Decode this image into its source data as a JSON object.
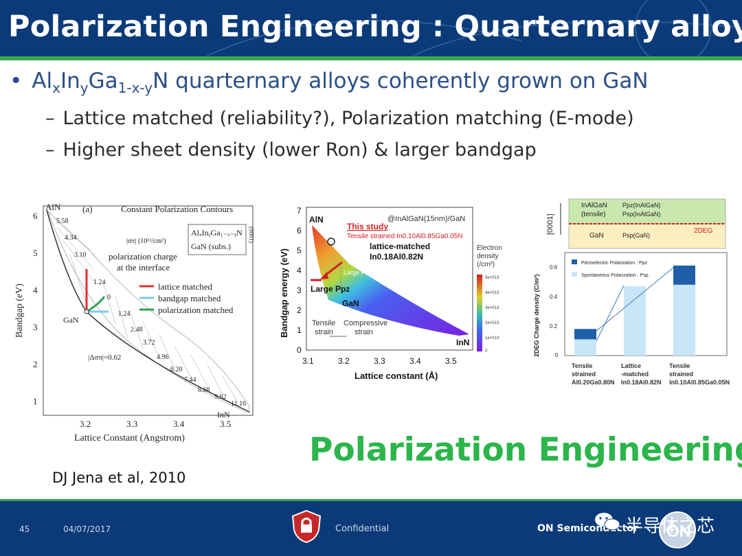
{
  "title": "Polarization Engineering : Quarternary alloys",
  "bullets": {
    "main": {
      "pre": "Al",
      "s1": "x",
      "mid1": "In",
      "s2": "y",
      "mid2": "Ga",
      "s3": "1-x-y",
      "post": "N quarternary alloys coherently grown on GaN"
    },
    "sub1": "Lattice matched (reliability?), Polarization matching (E-mode)",
    "sub2": "Higher sheet density (lower Ron) & larger bandgap"
  },
  "figure_left": {
    "panel": "(a)",
    "heading": "Constant Polarization Contours",
    "box1": "AlₓInᵧGa₁₋ₓ₋ᵧN",
    "box2": "GaN (subs.)",
    "box_side": "(0001)",
    "sigma_label": "|σπ| (10¹³/cm²)",
    "charge1": "polarization charge",
    "charge2": "at the interface",
    "legend": [
      "lattice matched",
      "bandgap matched",
      "polarization matched"
    ],
    "legend_colors": [
      "#e03030",
      "#7ec8e8",
      "#2aa050"
    ],
    "xlabel": "Lattice Constant (Angstrom)",
    "ylabel": "Bandgap (eV)",
    "xticks": [
      "3.2",
      "3.3",
      "3.4",
      "3.5"
    ],
    "yticks": [
      "1",
      "2",
      "3",
      "4",
      "5",
      "6"
    ],
    "points": {
      "top": "AlN",
      "mid": "GaN",
      "bot": "InN"
    },
    "contours": [
      "5.58",
      "4.34",
      "3.10",
      "1.24",
      "0",
      "1.24",
      "2.48",
      "3.72",
      "4.96",
      "6.20",
      "7.44",
      "8.68",
      "9.92",
      "11.16"
    ],
    "delta": "|Δσπ|=0.62"
  },
  "figure_mid": {
    "top": "AlN",
    "layer": "@InAlGaN(15nm)/GaN",
    "study": "This study",
    "tensile_alloy": "Tensile strained In0.10Al0.85Ga0.05N",
    "lm1": "lattice-matched",
    "lm2": "In0.18Al0.82N",
    "largepsp": "Large Psp",
    "largeppz": "Large Ppz",
    "gan": "GaN",
    "inn": "InN",
    "tensile": "Tensile",
    "strain": "strain",
    "compressive": "Compressive",
    "strain2": "strain",
    "ylabel": "Bandgap energy (eV)",
    "xlabel": "Lattice constant (Å)",
    "xticks": [
      "3.1",
      "3.2",
      "3.3",
      "3.4",
      "3.5"
    ],
    "yticks": [
      "0",
      "1",
      "2",
      "3",
      "4",
      "5",
      "6",
      "7"
    ],
    "cb_title1": "Electron",
    "cb_title2": "density",
    "cb_title3": "(/cm²)",
    "cb_ticks": [
      "5e+013",
      "4e+013",
      "3e+013",
      "2e+013",
      "1e+013",
      "0"
    ]
  },
  "figure_right": {
    "stack_top1": "InAlGaN",
    "stack_top2": "(tensile)",
    "ppz1": "Ppz(InAlGaN)",
    "psp1": "Psp(InAlGaN)",
    "stack_bot": "GaN",
    "psp_gan": "Psp(GaN)",
    "deg": "2DEG",
    "axis_dir": "[0001]",
    "ylabel": "2DEG Charge density (C/m²)",
    "legend": [
      "Piezoelectric Polarization : Ppz",
      "Spontaneous Polarization : Psp"
    ],
    "yticks": [
      "0",
      "0.2",
      "0.4",
      "0.6"
    ],
    "cats": [
      [
        "Tensile",
        "strained",
        "Al0.20Ga0.80N"
      ],
      [
        "Lattice",
        "-matched",
        "In0.18Al0.82N"
      ],
      [
        "Tensile",
        "strained",
        "In0.10Al0.85Ga0.05N"
      ]
    ]
  },
  "chart_data": [
    {
      "type": "bar",
      "ylabel": "2DEG Charge density (C/m²)",
      "ylim": [
        0,
        0.7
      ],
      "categories": [
        "Tensile strained Al0.20Ga0.80N",
        "Lattice-matched In0.18Al0.82N",
        "Tensile strained In0.10Al0.85Ga0.05N"
      ],
      "series": [
        {
          "name": "Spontaneous Polarization : Psp",
          "values": [
            0.11,
            0.47,
            0.48
          ]
        },
        {
          "name": "Piezoelectric Polarization : Ppz",
          "values": [
            0.07,
            0.0,
            0.13
          ]
        }
      ],
      "colors": [
        "#c8e6f8",
        "#1f5fa8"
      ]
    }
  ],
  "emphasis": "Polarization Engineering",
  "reference": "DJ Jena et al, 2010",
  "footer": {
    "page": "45",
    "date": "04/07/2017",
    "confidential": "Confidential",
    "company": "ON Semiconductor",
    "watermark": "半导体之芯"
  }
}
